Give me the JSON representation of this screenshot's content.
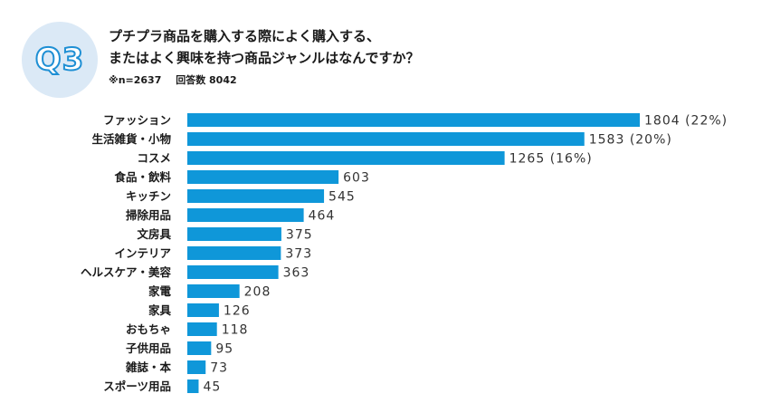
{
  "header": {
    "badge": "Q3",
    "question_line1": "プチプラ商品を購入する際によく購入する、",
    "question_line2": "またはよく興味を持つ商品ジャンルはなんですか？",
    "sample_size": "※n=2637",
    "answer_count": "回答数 8042"
  },
  "colors": {
    "bar": "#0f97d9",
    "badge_bg": "#dbe9f6",
    "badge_text": "#1e8fd4"
  },
  "chart_data": {
    "type": "bar",
    "orientation": "horizontal",
    "categories": [
      "ファッション",
      "生活雑貨・小物",
      "コスメ",
      "食品・飲料",
      "キッチン",
      "掃除用品",
      "文房具",
      "インテリア",
      "ヘルスケア・美容",
      "家電",
      "家具",
      "おもちゃ",
      "子供用品",
      "雑誌・本",
      "スポーツ用品"
    ],
    "values": [
      1804,
      1583,
      1265,
      603,
      545,
      464,
      375,
      373,
      363,
      208,
      126,
      118,
      95,
      73,
      45
    ],
    "value_labels": [
      "1804 (22%)",
      "1583 (20%)",
      "1265 (16%)",
      "603",
      "545",
      "464",
      "375",
      "373",
      "363",
      "208",
      "126",
      "118",
      "95",
      "73",
      "45"
    ],
    "title": "",
    "xlabel": "",
    "ylabel": "",
    "grid": false,
    "legend": "none"
  }
}
